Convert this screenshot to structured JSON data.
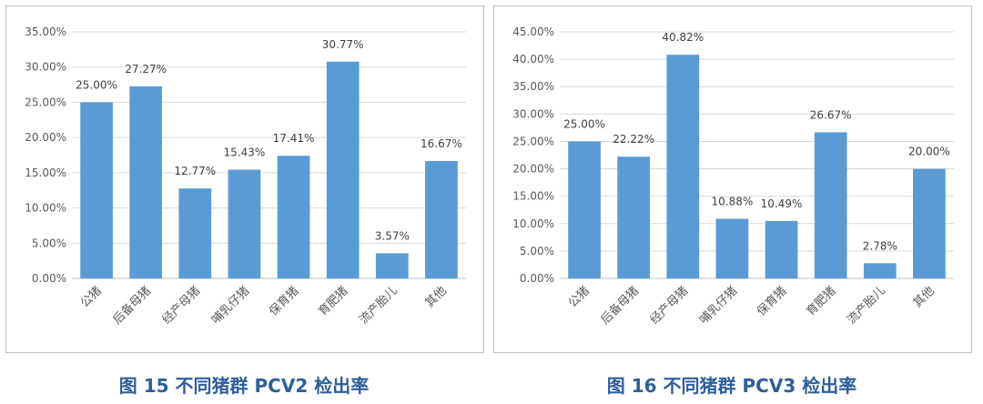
{
  "chart_data": [
    {
      "type": "bar",
      "caption": "图 15   不同猪群 PCV2 检出率",
      "categories": [
        "公猪",
        "后备母猪",
        "经产母猪",
        "哺乳仔猪",
        "保育猪",
        "育肥猪",
        "流产胎儿",
        "其他"
      ],
      "values": [
        25.0,
        27.27,
        12.77,
        15.43,
        17.41,
        30.77,
        3.57,
        16.67
      ],
      "value_labels": [
        "25.00%",
        "27.27%",
        "12.77%",
        "15.43%",
        "17.41%",
        "30.77%",
        "3.57%",
        "16.67%"
      ],
      "ylim": [
        0,
        35
      ],
      "yticks": [
        "0.00%",
        "5.00%",
        "10.00%",
        "15.00%",
        "20.00%",
        "25.00%",
        "30.00%",
        "35.00%"
      ],
      "grid": true,
      "bar_color": "#5b9bd5"
    },
    {
      "type": "bar",
      "caption": "图 16  不同猪群 PCV3 检出率",
      "categories": [
        "公猪",
        "后备母猪",
        "经产母猪",
        "哺乳仔猪",
        "保育猪",
        "育肥猪",
        "流产胎儿",
        "其他"
      ],
      "values": [
        25.0,
        22.22,
        40.82,
        10.88,
        10.49,
        26.67,
        2.78,
        20.0
      ],
      "value_labels": [
        "25.00%",
        "22.22%",
        "40.82%",
        "10.88%",
        "10.49%",
        "26.67%",
        "2.78%",
        "20.00%"
      ],
      "ylim": [
        0,
        45
      ],
      "yticks": [
        "0.00%",
        "5.00%",
        "10.00%",
        "15.00%",
        "20.00%",
        "25.00%",
        "30.00%",
        "35.00%",
        "40.00%",
        "45.00%"
      ],
      "grid": true,
      "bar_color": "#5b9bd5"
    }
  ]
}
